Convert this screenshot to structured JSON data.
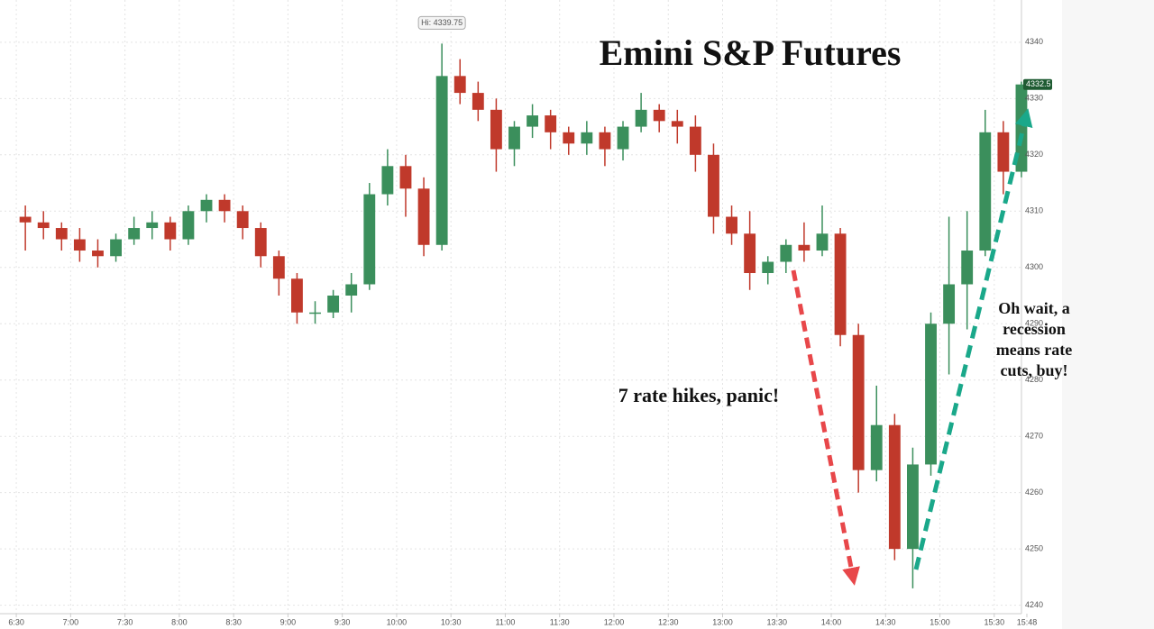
{
  "chart_data": {
    "type": "candlestick",
    "title": "Emini S&P Futures",
    "annotations": {
      "high": "Hi: 4339.75",
      "panic": "7 rate hikes, panic!",
      "buy": [
        "Oh wait, a",
        "recession",
        "means rate",
        "cuts, buy!"
      ]
    },
    "x": [
      "6:30",
      "6:40",
      "6:50",
      "7:00",
      "7:10",
      "7:20",
      "7:30",
      "7:40",
      "7:50",
      "8:00",
      "8:10",
      "8:20",
      "8:30",
      "8:40",
      "8:50",
      "9:00",
      "9:10",
      "9:20",
      "9:30",
      "9:40",
      "9:50",
      "10:00",
      "10:10",
      "10:20",
      "10:30",
      "10:40",
      "10:50",
      "11:00",
      "11:10",
      "11:20",
      "11:30",
      "11:40",
      "11:50",
      "12:00",
      "12:10",
      "12:20",
      "12:30",
      "12:40",
      "12:50",
      "13:00",
      "13:10",
      "13:20",
      "13:30",
      "13:40",
      "13:50",
      "14:00",
      "14:10",
      "14:20",
      "14:30",
      "14:40",
      "14:50",
      "15:00",
      "15:10",
      "15:20",
      "15:30",
      "15:40"
    ],
    "open": [
      4309,
      4308,
      4307,
      4305,
      4303,
      4302,
      4305,
      4307,
      4308,
      4305,
      4310,
      4312,
      4310,
      4307,
      4302,
      4298,
      4292,
      4292,
      4295,
      4297,
      4313,
      4318,
      4314,
      4304,
      4334,
      4331,
      4328,
      4321,
      4325,
      4327,
      4324,
      4322,
      4324,
      4321,
      4325,
      4328,
      4326,
      4325,
      4320,
      4309,
      4306,
      4299,
      4301,
      4304,
      4303,
      4306,
      4288,
      4264,
      4272,
      4250,
      4265,
      4290,
      4297,
      4303,
      4324,
      4317
    ],
    "high": [
      4311,
      4310,
      4308,
      4307,
      4305,
      4306,
      4309,
      4310,
      4309,
      4311,
      4313,
      4313,
      4311,
      4308,
      4303,
      4299,
      4294,
      4296,
      4299,
      4315,
      4321,
      4320,
      4316,
      4339.75,
      4337,
      4333,
      4330,
      4326,
      4329,
      4328,
      4325,
      4326,
      4325,
      4326,
      4331,
      4329,
      4328,
      4327,
      4322,
      4311,
      4310,
      4302,
      4305,
      4308,
      4311,
      4307,
      4290,
      4279,
      4274,
      4268,
      4292,
      4309,
      4310,
      4328,
      4326,
      4333
    ],
    "low": [
      4303,
      4305,
      4303,
      4301,
      4300,
      4301,
      4304,
      4305,
      4303,
      4304,
      4308,
      4308,
      4305,
      4300,
      4295,
      4290,
      4290,
      4291,
      4292,
      4296,
      4311,
      4309,
      4302,
      4303,
      4329,
      4326,
      4317,
      4318,
      4323,
      4321,
      4320,
      4320,
      4318,
      4319,
      4324,
      4324,
      4322,
      4317,
      4306,
      4304,
      4296,
      4297,
      4299,
      4301,
      4302,
      4286,
      4260,
      4262,
      4248,
      4243,
      4263,
      4281,
      4289,
      4302,
      4313,
      4316
    ],
    "close": [
      4308,
      4307,
      4305,
      4303,
      4302,
      4305,
      4307,
      4308,
      4305,
      4310,
      4312,
      4310,
      4307,
      4302,
      4298,
      4292,
      4292,
      4295,
      4297,
      4313,
      4318,
      4314,
      4304,
      4334,
      4331,
      4328,
      4321,
      4325,
      4327,
      4324,
      4322,
      4324,
      4321,
      4325,
      4328,
      4326,
      4325,
      4320,
      4309,
      4306,
      4299,
      4301,
      4304,
      4303,
      4306,
      4288,
      4264,
      4272,
      4250,
      4265,
      4290,
      4297,
      4303,
      4324,
      4317,
      4332.5
    ],
    "up_color": "#3b8f5c",
    "down_color": "#c0392b",
    "xlim": [
      "6:21",
      "15:50"
    ],
    "xticks": [
      "6:30",
      "7:00",
      "7:30",
      "8:00",
      "8:30",
      "9:00",
      "9:30",
      "10:00",
      "10:30",
      "11:00",
      "11:30",
      "12:00",
      "12:30",
      "13:00",
      "13:30",
      "14:00",
      "14:30",
      "15:00",
      "15:30",
      "15:48"
    ],
    "ylim": [
      4238.5,
      4347.5
    ],
    "yticks": [
      4240,
      4250,
      4260,
      4270,
      4280,
      4290,
      4300,
      4310,
      4320,
      4330,
      4340
    ],
    "grid": true
  }
}
